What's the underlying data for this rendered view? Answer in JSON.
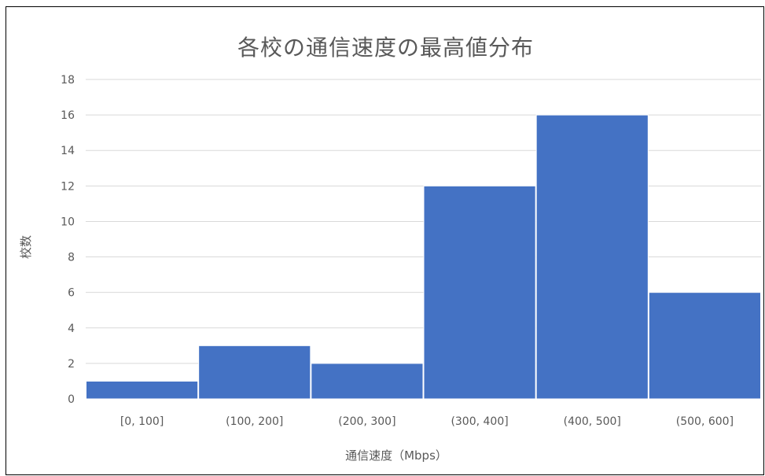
{
  "chart_data": {
    "type": "bar",
    "title": "各校の通信速度の最高値分布",
    "xlabel": "通信速度（Mbps）",
    "ylabel": "校数",
    "categories": [
      "[0, 100]",
      "(100, 200]",
      "(200, 300]",
      "(300, 400]",
      "(400, 500]",
      "(500, 600]"
    ],
    "values": [
      1,
      3,
      2,
      12,
      16,
      6
    ],
    "ylim": [
      0,
      18
    ],
    "yticks": [
      0,
      2,
      4,
      6,
      8,
      10,
      12,
      14,
      16,
      18
    ],
    "grid": true,
    "legend": "none",
    "bar_color": "#4472C4",
    "grid_color": "#D9D9D9",
    "text_color": "#595959"
  }
}
